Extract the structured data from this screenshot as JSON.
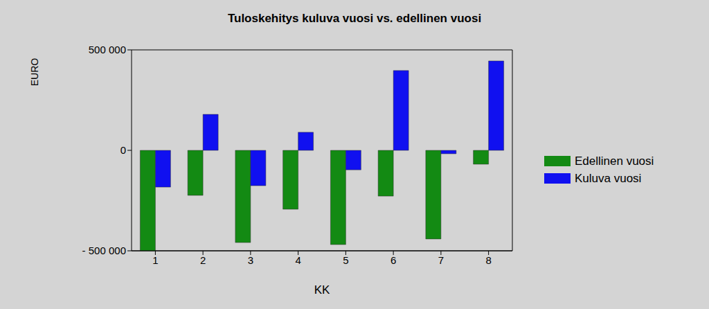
{
  "chart_data": {
    "type": "bar",
    "title": "Tuloskehitys kuluva vuosi vs. edellinen vuosi",
    "x_label": "KK",
    "y_label": "EURO",
    "categories": [
      "1",
      "2",
      "3",
      "4",
      "5",
      "6",
      "7",
      "8"
    ],
    "series": [
      {
        "name": "Edellinen vuosi",
        "color": "#138a13",
        "values": [
          -500000,
          -224000,
          -459000,
          -293000,
          -469000,
          -228000,
          -441000,
          -69000
        ]
      },
      {
        "name": "Kuluva vuosi",
        "color": "#1010f0",
        "values": [
          -183000,
          179000,
          -176000,
          90000,
          -97000,
          397000,
          -17000,
          445000
        ]
      }
    ],
    "ylim": [
      -500000,
      500000
    ],
    "yticks": [
      {
        "value": -500000,
        "label": "- 500 000"
      },
      0,
      {
        "value": 500000,
        "label": "500 000"
      }
    ],
    "grid": true,
    "legend": "right"
  }
}
